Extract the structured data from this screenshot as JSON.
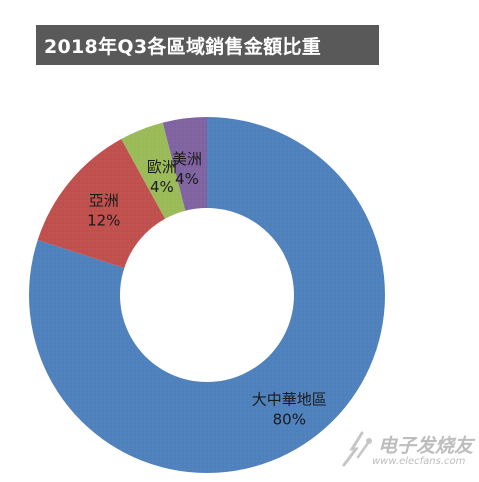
{
  "title": "2018年Q3各區域銷售金額比重",
  "chart_data": {
    "type": "pie",
    "title": "2018年Q3各區域銷售金額比重",
    "donut": true,
    "categories": [
      "大中華地區",
      "亞洲",
      "歐洲",
      "美洲"
    ],
    "values": [
      80,
      12,
      4,
      4
    ],
    "value_labels": [
      "80%",
      "12%",
      "4%",
      "4%"
    ],
    "colors": [
      "#4F81BD",
      "#C0504D",
      "#9BBB59",
      "#8064A2"
    ],
    "legend": "none",
    "labels_on_slices": true
  },
  "watermark": {
    "name": "电子发烧友",
    "url": "www.elecfans.com",
    "logo_icon": "circuit-logo-icon"
  }
}
